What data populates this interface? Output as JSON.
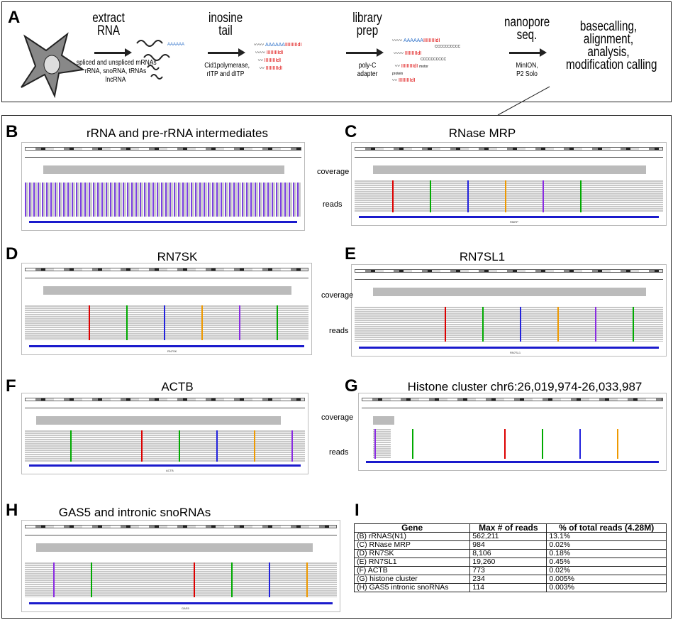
{
  "panel_a": {
    "label": "A",
    "steps": [
      {
        "title": "extract\nRNA",
        "sub": "spliced and unspliced mRNAs\nrRNA, snoRNA, tRNAs\nlncRNA"
      },
      {
        "title": "inosine\ntail",
        "sub": "Cid1polymerase,\nrITP and dITP"
      },
      {
        "title": "library\nprep",
        "sub": "poly-C\nadapter"
      },
      {
        "title": "nanopore\nseq.",
        "sub": "MinION,\nP2 Solo"
      }
    ],
    "final": "basecalling,\nalignment,\nanalysis,\nmodification calling",
    "polyA": "AAAAAA",
    "itail": "IIIIIIIIIdI",
    "ctail": "CCCCCCCCCC",
    "motor": "motor\nprotein"
  },
  "panels": [
    {
      "label": "B",
      "title": "rRNA and pre-rRNA intermediates",
      "gene": ""
    },
    {
      "label": "C",
      "title": "RNase MRP",
      "gene": "RMRP"
    },
    {
      "label": "D",
      "title": "RN7SK",
      "gene": "RN7SK"
    },
    {
      "label": "E",
      "title": "RN7SL1",
      "gene": "RN7SL1"
    },
    {
      "label": "F",
      "title": "ACTB",
      "gene": "ACTB"
    },
    {
      "label": "G",
      "title": "Histone cluster chr6:26,019,974-26,033,987",
      "gene": ""
    },
    {
      "label": "H",
      "title": "GAS5 and intronic snoRNAs",
      "gene": "GAS5"
    }
  ],
  "track_labels": {
    "coverage": "coverage",
    "reads": "reads"
  },
  "table": {
    "label": "I",
    "headers": [
      "Gene",
      "Max # of reads",
      "% of total reads (4.28M)"
    ],
    "rows": [
      [
        "(B) rRNAS(N1)",
        "562,211",
        "13.1%"
      ],
      [
        "(C) RNase MRP",
        "984",
        "0.02%"
      ],
      [
        "(D) RN7SK",
        "8,106",
        "0.18%"
      ],
      [
        "(E) RN7SL1",
        "19,260",
        "0.45%"
      ],
      [
        "(F) ACTB",
        "773",
        "0.02%"
      ],
      [
        "(G) histone cluster",
        "234",
        "0.005%"
      ],
      [
        "(H) GAS5 intronic snoRNAs",
        "114",
        "0.003%"
      ]
    ]
  }
}
